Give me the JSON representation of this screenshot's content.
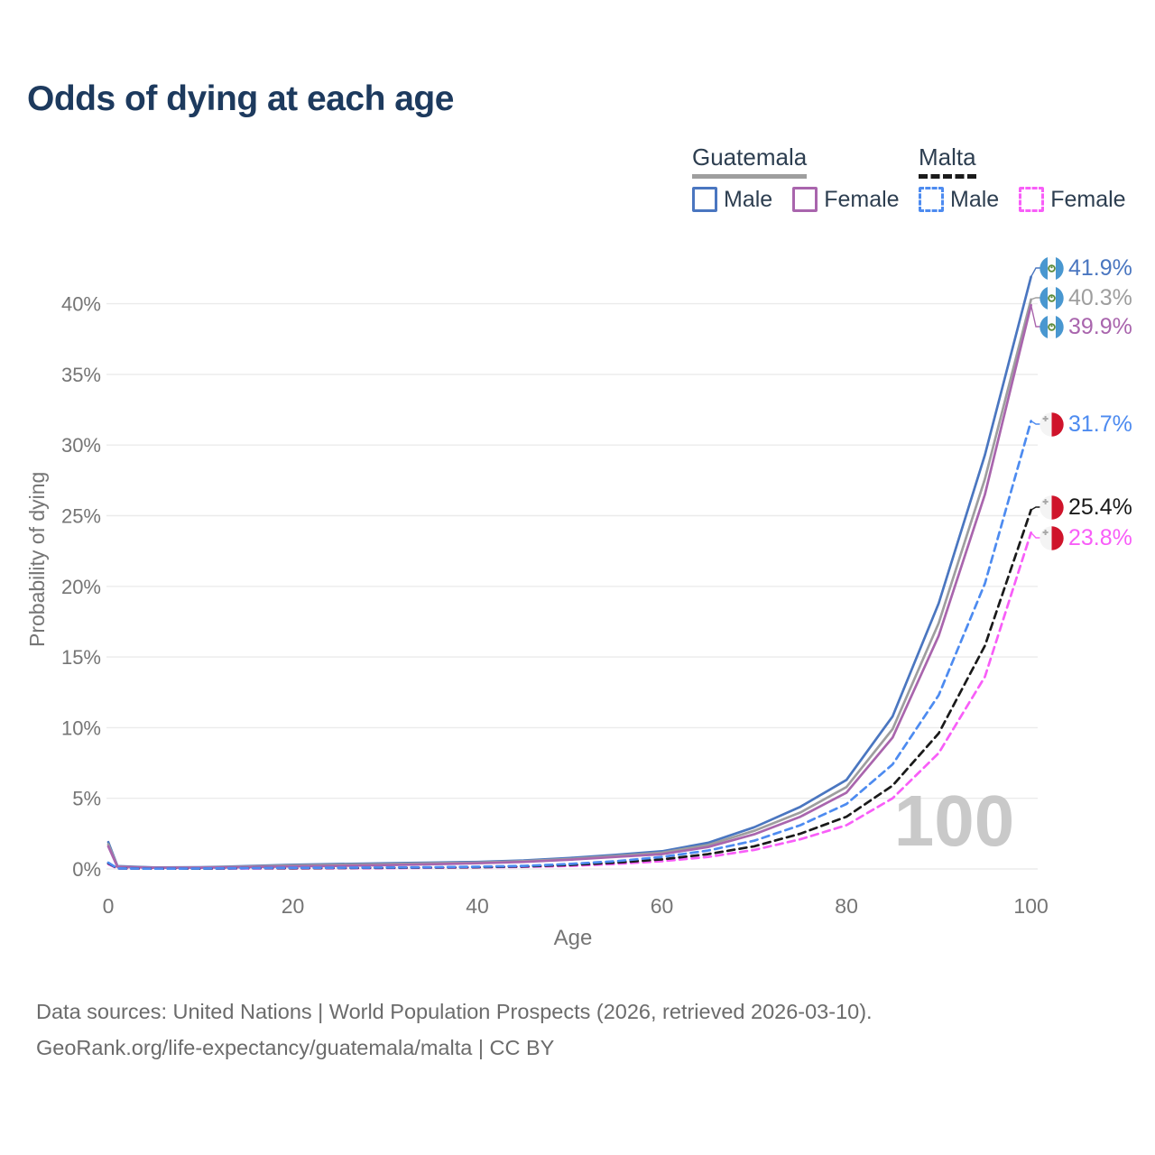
{
  "title": "Odds of dying at each age",
  "watermark": "100",
  "legend": {
    "groups": [
      {
        "country": "Guatemala",
        "items": [
          {
            "label": "Male"
          },
          {
            "label": "Female"
          }
        ]
      },
      {
        "country": "Malta",
        "items": [
          {
            "label": "Male"
          },
          {
            "label": "Female"
          }
        ]
      }
    ]
  },
  "footer": {
    "line1": "Data sources: United Nations | World Population Prospects (2026, retrieved 2026-03-10).",
    "line2": "GeoRank.org/life-expectancy/guatemala/malta | CC BY"
  },
  "chart_data": {
    "type": "line",
    "title": "Odds of dying at each age",
    "xlabel": "Age",
    "ylabel": "Probability of dying",
    "xlim": [
      0,
      100
    ],
    "ylim": [
      0,
      43
    ],
    "x_ticks": [
      "0",
      "20",
      "40",
      "60",
      "80",
      "100"
    ],
    "x_tick_values": [
      0,
      20,
      40,
      60,
      80,
      100
    ],
    "y_ticks": [
      "0%",
      "5%",
      "10%",
      "15%",
      "20%",
      "25%",
      "30%",
      "35%",
      "40%"
    ],
    "y_tick_values": [
      0,
      5,
      10,
      15,
      20,
      25,
      30,
      35,
      40
    ],
    "grid": "horizontal",
    "legend_position": "top-right",
    "x": [
      0,
      1,
      5,
      10,
      15,
      20,
      25,
      30,
      35,
      40,
      45,
      50,
      55,
      60,
      65,
      70,
      75,
      80,
      85,
      90,
      95,
      100
    ],
    "series": [
      {
        "name": "Guatemala Male",
        "country": "Guatemala",
        "sex": "male",
        "style": "solid",
        "color": "#4a76c0",
        "values": [
          1.9,
          0.2,
          0.1,
          0.12,
          0.2,
          0.3,
          0.35,
          0.4,
          0.45,
          0.5,
          0.6,
          0.78,
          1.0,
          1.25,
          1.85,
          2.95,
          4.4,
          6.3,
          10.8,
          18.8,
          29.3,
          41.9
        ]
      },
      {
        "name": "Guatemala",
        "country": "Guatemala",
        "sex": "both",
        "style": "solid",
        "color": "#9e9e9e",
        "values": [
          1.75,
          0.17,
          0.09,
          0.1,
          0.17,
          0.25,
          0.3,
          0.34,
          0.4,
          0.45,
          0.55,
          0.7,
          0.92,
          1.15,
          1.7,
          2.7,
          4.0,
          5.8,
          9.9,
          17.4,
          27.6,
          40.3
        ]
      },
      {
        "name": "Guatemala Female",
        "country": "Guatemala",
        "sex": "female",
        "style": "solid",
        "color": "#a965ad",
        "values": [
          1.6,
          0.15,
          0.08,
          0.09,
          0.13,
          0.18,
          0.22,
          0.27,
          0.33,
          0.4,
          0.5,
          0.65,
          0.85,
          1.05,
          1.55,
          2.45,
          3.7,
          5.4,
          9.3,
          16.5,
          26.5,
          39.9
        ]
      },
      {
        "name": "Malta Female",
        "country": "Malta",
        "sex": "female",
        "style": "dashed",
        "color": "#f85ef8",
        "values": [
          0.35,
          0.03,
          0.02,
          0.02,
          0.03,
          0.04,
          0.05,
          0.06,
          0.08,
          0.11,
          0.15,
          0.22,
          0.36,
          0.55,
          0.85,
          1.35,
          2.1,
          3.1,
          5.0,
          8.2,
          13.6,
          23.8
        ]
      },
      {
        "name": "Malta",
        "country": "Malta",
        "sex": "both",
        "style": "dashed",
        "color": "#1a1a1a",
        "values": [
          0.4,
          0.04,
          0.02,
          0.02,
          0.05,
          0.06,
          0.07,
          0.08,
          0.1,
          0.13,
          0.18,
          0.28,
          0.45,
          0.68,
          1.05,
          1.6,
          2.5,
          3.7,
          5.9,
          9.6,
          15.8,
          25.4
        ]
      },
      {
        "name": "Malta Male",
        "country": "Malta",
        "sex": "male",
        "style": "dashed",
        "color": "#4d8bf0",
        "values": [
          0.45,
          0.04,
          0.02,
          0.03,
          0.06,
          0.08,
          0.09,
          0.1,
          0.12,
          0.16,
          0.22,
          0.35,
          0.55,
          0.85,
          1.3,
          2.0,
          3.1,
          4.6,
          7.4,
          12.3,
          20.2,
          31.7
        ]
      }
    ],
    "end_labels": [
      {
        "text": "41.9%",
        "value": 41.9,
        "color": "#4a76c0",
        "flag": "guatemala",
        "series": "Guatemala Male"
      },
      {
        "text": "40.3%",
        "value": 40.3,
        "color": "#9e9e9e",
        "flag": "guatemala",
        "series": "Guatemala"
      },
      {
        "text": "39.9%",
        "value": 39.9,
        "color": "#a965ad",
        "flag": "guatemala",
        "series": "Guatemala Female"
      },
      {
        "text": "31.7%",
        "value": 31.7,
        "color": "#4d8bf0",
        "flag": "malta",
        "series": "Malta Male"
      },
      {
        "text": "25.4%",
        "value": 25.4,
        "color": "#1a1a1a",
        "flag": "malta",
        "series": "Malta"
      },
      {
        "text": "23.8%",
        "value": 23.8,
        "color": "#f85ef8",
        "flag": "malta",
        "series": "Malta Female"
      }
    ]
  }
}
